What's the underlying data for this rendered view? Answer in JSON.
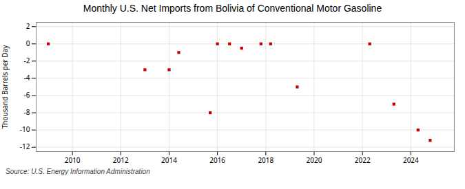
{
  "chart_data": {
    "type": "scatter",
    "title": "Monthly U.S. Net Imports from Bolivia of Conventional Motor Gasoline",
    "ylabel": "Thousand Barrels per Day",
    "source": "Source: U.S. Energy Information Administration",
    "x": [
      2009.0,
      2013.0,
      2014.0,
      2014.4,
      2015.7,
      2016.0,
      2016.5,
      2017.0,
      2017.8,
      2018.2,
      2019.3,
      2022.3,
      2023.3,
      2024.3,
      2024.8
    ],
    "values": [
      0,
      -3,
      -3,
      -1,
      -8,
      0,
      0,
      -0.5,
      0,
      0,
      -5,
      0,
      -7,
      -10,
      -11.2
    ],
    "color": "#cc0000",
    "marker": "square",
    "xlim": [
      2008.5,
      2025.8
    ],
    "ylim": [
      -12.5,
      2.5
    ],
    "xticks": [
      2010,
      2012,
      2014,
      2016,
      2018,
      2020,
      2022,
      2024
    ],
    "yticks": [
      2,
      0,
      -2,
      -4,
      -6,
      -8,
      -10,
      -12
    ],
    "grid": true
  }
}
